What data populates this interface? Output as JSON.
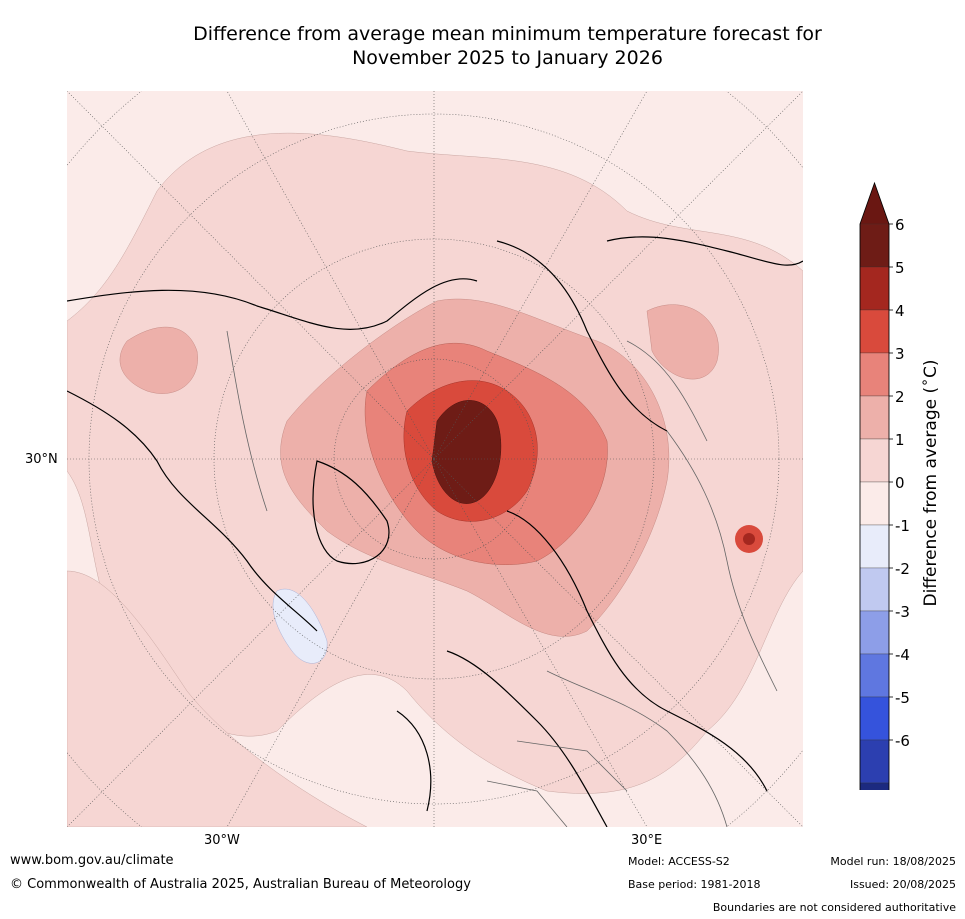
{
  "title_line1": "Difference from average mean minimum temperature forecast for",
  "title_line2": "November 2025 to January 2026",
  "map": {
    "lat_label": "30°N",
    "lon_labels": [
      "30°W",
      "30°E"
    ]
  },
  "colorbar": {
    "title": "Difference from average (°C)",
    "ticks": [
      "6",
      "5",
      "4",
      "3",
      "2",
      "1",
      "0",
      "-1",
      "-2",
      "-3",
      "-4",
      "-5",
      "-6"
    ],
    "colors_warm": [
      "#6e1c16",
      "#a4271f",
      "#d94a3c",
      "#e8837a",
      "#edb0aa",
      "#f6d6d3",
      "#fbebe9"
    ],
    "colors_cool": [
      "#e8ecfa",
      "#c0c9f0",
      "#8d9ee8",
      "#5f77e0",
      "#3553dc",
      "#2c3fb0",
      "#1c2a80"
    ]
  },
  "footer": {
    "website": "www.bom.gov.au/climate",
    "copyright": "© Commonwealth of Australia 2025, Australian Bureau of Meteorology",
    "model": "Model: ACCESS-S2",
    "base_period": "Base period: 1981-2018",
    "model_run": "Model run: 18/08/2025",
    "issued": "Issued: 20/08/2025",
    "disclaimer": "Boundaries are not considered authoritative"
  }
}
